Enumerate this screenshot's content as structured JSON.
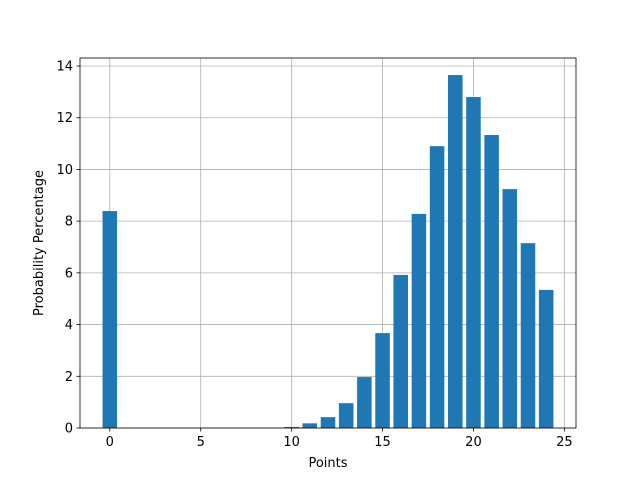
{
  "chart_data": {
    "type": "bar",
    "x": [
      0,
      10,
      11,
      12,
      13,
      14,
      15,
      16,
      17,
      18,
      19,
      20,
      21,
      22,
      23,
      24
    ],
    "values": [
      8.39,
      0.04,
      0.18,
      0.42,
      0.96,
      1.97,
      3.67,
      5.92,
      8.28,
      10.9,
      13.65,
      12.8,
      11.33,
      9.24,
      7.15,
      5.34
    ],
    "color": "#1f77b4",
    "xlabel": "Points",
    "ylabel": "Probability Percentage",
    "xlim": [
      -1.64,
      25.64
    ],
    "ylim": [
      0,
      14.31
    ],
    "xticks": [
      0,
      5,
      10,
      15,
      20,
      25
    ],
    "yticks": [
      0,
      2,
      4,
      6,
      8,
      10,
      12,
      14
    ],
    "grid": true
  }
}
